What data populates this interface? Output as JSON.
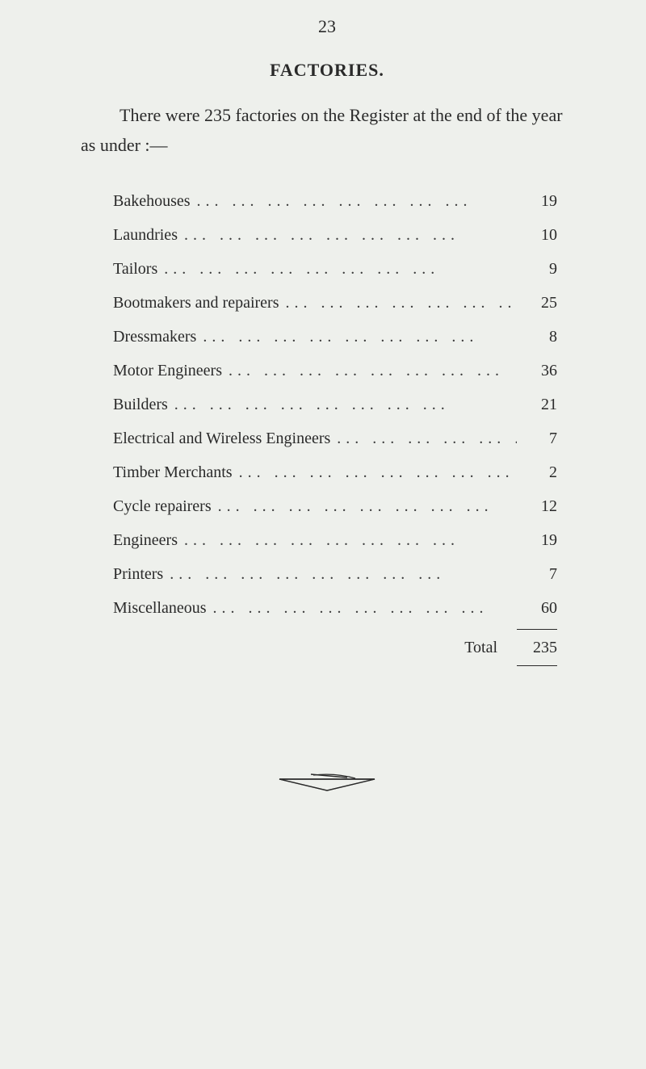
{
  "page_number": "23",
  "section_title": "FACTORIES.",
  "intro_text": "There were 235 factories on the Register at the end of the year as under :—",
  "rows": [
    {
      "label": "Bakehouses",
      "value": "19"
    },
    {
      "label": "Laundries",
      "value": "10"
    },
    {
      "label": "Tailors",
      "value": "9"
    },
    {
      "label": "Bootmakers and repairers",
      "value": "25"
    },
    {
      "label": "Dressmakers",
      "value": "8"
    },
    {
      "label": "Motor Engineers",
      "value": "36"
    },
    {
      "label": "Builders",
      "value": "21"
    },
    {
      "label": "Electrical and Wireless Engineers",
      "value": "7"
    },
    {
      "label": "Timber Merchants",
      "value": "2"
    },
    {
      "label": "Cycle repairers",
      "value": "12"
    },
    {
      "label": "Engineers",
      "value": "19"
    },
    {
      "label": "Printers",
      "value": "7"
    },
    {
      "label": "Miscellaneous",
      "value": "60"
    }
  ],
  "total_label": "Total",
  "total_value": "235",
  "style": {
    "background_color": "#eef0ec",
    "text_color": "#2a2a2a",
    "font_family": "Georgia, serif",
    "page_number_fontsize": 22,
    "title_fontsize": 22,
    "body_fontsize": 22,
    "row_fontsize": 20,
    "line_height": 2.0,
    "dot_leader_char": "...",
    "ornament_stroke": "#2a2a2a",
    "ornament_width": 130,
    "ornament_height": 30
  }
}
